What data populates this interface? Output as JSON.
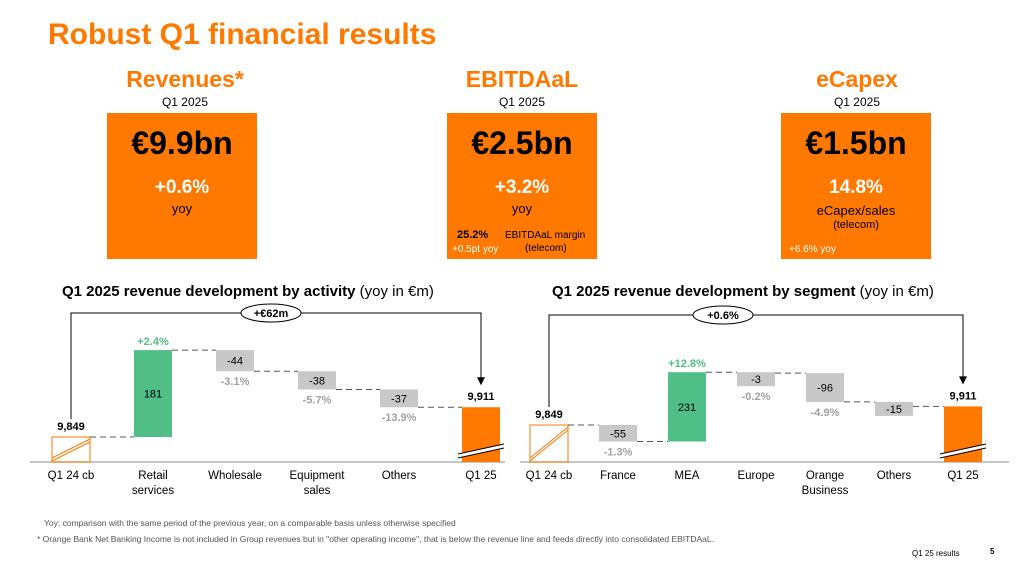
{
  "title": "Robust Q1 financial results",
  "kpis": [
    {
      "name": "Revenues*",
      "period": "Q1 2025",
      "value": "€9.9bn",
      "growth": "+0.6%",
      "growth_label": "yoy"
    },
    {
      "name": "EBITDAaL",
      "period": "Q1 2025",
      "value": "€2.5bn",
      "growth": "+3.2%",
      "growth_label": "yoy",
      "extra_value": "25.2%",
      "extra_value_change": "+0.5pt yoy",
      "extra_label": "EBITDAaL margin",
      "extra_label_2": "(telecom)"
    },
    {
      "name": "eCapex",
      "period": "Q1 2025",
      "value": "€1.5bn",
      "growth": "14.8%",
      "growth_label": "eCapex/sales",
      "growth_label_2": "(telecom)",
      "extra_note": "+6.6% yoy"
    }
  ],
  "colors": {
    "accent": "#ff7900",
    "increase": "#50be87",
    "decrease": "#c8c8c8",
    "pct_decrease": "#a0a0a0"
  },
  "chart_data": [
    {
      "type": "bar",
      "subtype": "waterfall",
      "title": "Q1 2025 revenue development by activity",
      "title_suffix": "(yoy in €m)",
      "total_change_label": "+€62m",
      "categories": [
        "Q1 24 cb",
        "Retail services",
        "Wholesale",
        "Equipment sales",
        "Others",
        "Q1 25"
      ],
      "label_lines": [
        [
          "Q1 24 cb"
        ],
        [
          "Retail",
          "services"
        ],
        [
          "Wholesale"
        ],
        [
          "Equipment",
          "sales"
        ],
        [
          "Others"
        ],
        [
          "Q1 25"
        ]
      ],
      "values": [
        9849,
        181,
        -44,
        -38,
        -37,
        9911
      ],
      "value_labels": [
        "9,849",
        "181",
        "-44",
        "-38",
        "-37",
        "9,911"
      ],
      "pct_labels": [
        "",
        "+2.4%",
        "-3.1%",
        "-5.7%",
        "-13.9%",
        ""
      ],
      "kinds": [
        "start",
        "up",
        "down",
        "down",
        "down",
        "total"
      ],
      "axis_broken": true
    },
    {
      "type": "bar",
      "subtype": "waterfall",
      "title": "Q1 2025 revenue development by segment",
      "title_suffix": "(yoy in €m)",
      "total_change_label": "+0.6%",
      "categories": [
        "Q1 24 cb",
        "France",
        "MEA",
        "Europe",
        "Orange Business",
        "Others",
        "Q1 25"
      ],
      "label_lines": [
        [
          "Q1 24 cb"
        ],
        [
          "France"
        ],
        [
          "MEA"
        ],
        [
          "Europe"
        ],
        [
          "Orange",
          "Business"
        ],
        [
          "Others"
        ],
        [
          "Q1 25"
        ]
      ],
      "values": [
        9849,
        -55,
        231,
        -3,
        -96,
        -15,
        9911
      ],
      "value_labels": [
        "9,849",
        "-55",
        "231",
        "-3",
        "-96",
        "-15",
        "9,911"
      ],
      "pct_labels": [
        "",
        "-1.3%",
        "+12.8%",
        "-0.2%",
        "-4.9%",
        "",
        ""
      ],
      "kinds": [
        "start",
        "down",
        "up",
        "down",
        "down",
        "down",
        "total"
      ],
      "axis_broken": true
    }
  ],
  "footnotes": [
    "Yoy: comparison with the same period of the previous year, on a comparable basis unless otherwise specified",
    "* Orange Bank Net Banking Income is not included in Group revenues but in \"other operating income\", that is below the revenue line and feeds directly into consolidated EBITDAaL."
  ],
  "footer": {
    "section": "Q1 25 results",
    "page": "5"
  }
}
